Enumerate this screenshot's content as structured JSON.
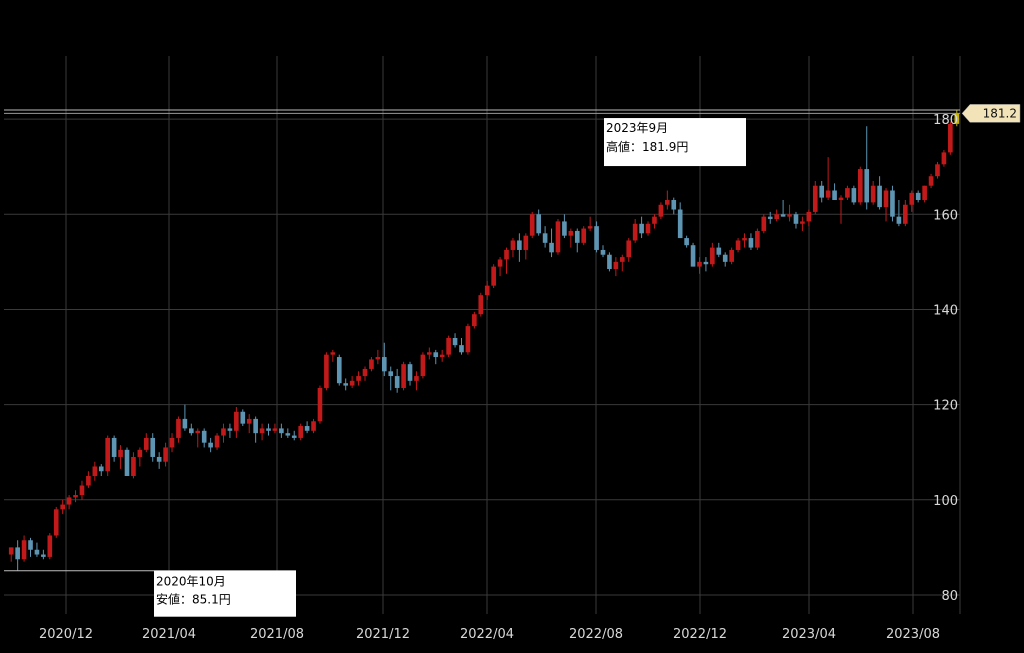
{
  "chart_data": {
    "type": "candlestick",
    "title": "",
    "xlabel": "",
    "ylabel": "",
    "ylim": [
      76,
      192
    ],
    "grid": true,
    "x_ticks": [
      "2020/12",
      "2021/04",
      "2021/08",
      "2021/12",
      "2022/04",
      "2022/08",
      "2022/12",
      "2023/04",
      "2023/08"
    ],
    "y_ticks": [
      "80",
      "100",
      "120",
      "140",
      "160",
      "180"
    ],
    "last_price_label": "181.2",
    "annotations": [
      {
        "line1": "2023年9月",
        "line2": "高値：181.9円",
        "value": 181.9
      },
      {
        "line1": "2020年10月",
        "line2": "安値：85.1円",
        "value": 85.1
      }
    ],
    "colors": {
      "up": "#c21a1a",
      "down": "#5d95b3",
      "grid": "#3a3a3a",
      "last": "#c8b400"
    },
    "candles": [
      [
        88.5,
        90.0,
        87.0,
        90.0
      ],
      [
        90,
        91.5,
        85.1,
        87.5
      ],
      [
        87.5,
        92.5,
        87,
        91.5
      ],
      [
        91.5,
        92,
        88,
        89.5
      ],
      [
        89.5,
        91,
        88,
        88.5
      ],
      [
        88.5,
        89.5,
        87.5,
        88
      ],
      [
        88,
        93,
        87.5,
        92.5
      ],
      [
        92.5,
        98.5,
        92,
        98
      ],
      [
        98,
        100,
        97,
        99
      ],
      [
        99,
        101,
        98,
        100.5
      ],
      [
        100.5,
        102,
        99.5,
        101
      ],
      [
        101,
        104,
        100,
        103
      ],
      [
        103,
        106,
        102.5,
        105
      ],
      [
        105,
        108,
        104,
        107
      ],
      [
        107,
        107.5,
        105,
        106
      ],
      [
        106,
        113.5,
        105,
        113
      ],
      [
        113,
        113.5,
        108,
        109
      ],
      [
        109,
        111.5,
        106.5,
        110.5
      ],
      [
        110.5,
        111,
        105,
        105
      ],
      [
        105,
        110,
        104.5,
        109
      ],
      [
        109,
        111,
        107,
        110.5
      ],
      [
        110.5,
        114,
        110,
        113
      ],
      [
        113,
        114,
        108,
        109
      ],
      [
        109,
        110,
        106.5,
        108
      ],
      [
        108,
        112,
        107,
        111
      ],
      [
        111,
        114,
        110,
        113
      ],
      [
        113,
        117.5,
        112,
        117
      ],
      [
        117,
        120,
        114.5,
        115
      ],
      [
        115,
        116,
        113.5,
        114
      ],
      [
        114,
        115,
        111,
        114.5
      ],
      [
        114.5,
        115,
        111,
        112
      ],
      [
        112,
        113,
        110,
        111
      ],
      [
        111,
        114,
        110.5,
        113.5
      ],
      [
        113.5,
        116,
        112,
        115
      ],
      [
        115,
        116,
        113,
        114.5
      ],
      [
        114.5,
        119.5,
        113,
        118.5
      ],
      [
        118.5,
        119,
        115.5,
        116
      ],
      [
        116,
        118,
        114,
        117
      ],
      [
        117,
        117.5,
        112,
        114
      ],
      [
        114,
        116,
        112.5,
        115
      ],
      [
        115,
        116,
        113.5,
        114.5
      ],
      [
        114.5,
        116,
        114,
        115
      ],
      [
        115,
        116,
        113,
        114
      ],
      [
        114,
        115,
        113,
        113.5
      ],
      [
        113.5,
        114.5,
        112.5,
        113
      ],
      [
        113,
        116,
        112.5,
        115.5
      ],
      [
        115.5,
        116.5,
        114,
        114.5
      ],
      [
        114.5,
        117,
        114,
        116.5
      ],
      [
        116.5,
        124,
        116,
        123.5
      ],
      [
        123.5,
        131,
        123,
        130.5
      ],
      [
        130.5,
        131.5,
        129,
        131
      ],
      [
        130,
        130.5,
        124,
        124.5
      ],
      [
        124.5,
        125.5,
        123,
        124
      ],
      [
        124,
        126,
        123.5,
        125
      ],
      [
        125,
        127,
        124,
        126
      ],
      [
        126,
        128,
        125,
        127.5
      ],
      [
        127.5,
        130,
        127,
        129.5
      ],
      [
        129.5,
        131.5,
        128.5,
        130
      ],
      [
        130,
        133,
        126,
        127
      ],
      [
        127,
        128,
        123,
        126
      ],
      [
        126,
        127.5,
        122.5,
        123.5
      ],
      [
        123.5,
        129,
        123,
        128.5
      ],
      [
        128.5,
        129,
        124,
        125
      ],
      [
        125,
        127,
        123,
        126
      ],
      [
        126,
        131,
        125.5,
        130.5
      ],
      [
        130.5,
        132,
        129.5,
        131
      ],
      [
        131,
        131.5,
        128.5,
        130
      ],
      [
        130,
        131.5,
        129,
        130.5
      ],
      [
        130.5,
        134.5,
        130,
        134
      ],
      [
        134,
        135,
        132,
        132.5
      ],
      [
        132.5,
        134,
        130.5,
        131
      ],
      [
        131,
        137,
        130.5,
        136.5
      ],
      [
        136.5,
        139.5,
        136,
        139
      ],
      [
        139,
        143.5,
        138.5,
        143
      ],
      [
        143,
        146,
        142,
        145
      ],
      [
        145,
        149.5,
        144.5,
        149
      ],
      [
        149,
        151,
        147,
        150.5
      ],
      [
        150.5,
        153,
        147.5,
        152.5
      ],
      [
        152.5,
        155,
        151,
        154.5
      ],
      [
        154.5,
        156,
        150,
        152.5
      ],
      [
        152.5,
        156,
        150.5,
        155.5
      ],
      [
        155.5,
        160.5,
        155,
        160
      ],
      [
        160,
        161,
        155.5,
        156
      ],
      [
        156,
        157.5,
        153,
        154
      ],
      [
        154,
        157,
        151,
        152
      ],
      [
        152,
        159,
        151.5,
        158.5
      ],
      [
        158.5,
        160,
        155,
        155.5
      ],
      [
        155.5,
        157,
        153,
        156.5
      ],
      [
        156.5,
        157,
        152,
        154
      ],
      [
        154,
        157.5,
        153.5,
        157
      ],
      [
        157,
        159.5,
        156.5,
        157.5
      ],
      [
        157.5,
        158.5,
        152,
        152.5
      ],
      [
        152.5,
        153.5,
        151,
        151.5
      ],
      [
        151.5,
        152,
        148,
        148.5
      ],
      [
        148.5,
        151,
        147,
        150
      ],
      [
        150,
        151.5,
        148,
        151
      ],
      [
        151,
        155,
        150,
        154.5
      ],
      [
        154.5,
        159,
        154,
        158
      ],
      [
        158,
        159.5,
        155,
        156
      ],
      [
        156,
        158.5,
        155.5,
        158
      ],
      [
        158,
        160,
        157,
        159.5
      ],
      [
        159.5,
        162.5,
        159,
        162
      ],
      [
        162,
        165,
        161,
        163
      ],
      [
        163,
        163.5,
        160,
        161
      ],
      [
        161,
        162.5,
        155,
        155
      ],
      [
        155,
        155.5,
        153,
        153.5
      ],
      [
        153.5,
        154,
        149,
        149
      ],
      [
        149,
        151,
        147.5,
        150
      ],
      [
        150,
        151,
        148,
        149.5
      ],
      [
        149.5,
        154,
        149,
        153
      ],
      [
        153,
        154,
        151,
        151.5
      ],
      [
        151.5,
        152,
        149,
        150
      ],
      [
        150,
        153,
        149.5,
        152.5
      ],
      [
        152.5,
        155,
        152,
        154.5
      ],
      [
        154.5,
        156,
        153,
        155
      ],
      [
        155,
        156,
        152.5,
        153
      ],
      [
        153,
        157,
        152.5,
        156.5
      ],
      [
        156.5,
        160,
        156,
        159.5
      ],
      [
        159.5,
        160.5,
        158,
        159
      ],
      [
        159,
        161,
        158.5,
        160
      ],
      [
        160,
        163,
        159.5,
        159.5
      ],
      [
        159.5,
        162,
        158.5,
        160
      ],
      [
        160,
        160.5,
        157,
        158
      ],
      [
        158,
        159.5,
        156.5,
        158.5
      ],
      [
        158.5,
        161,
        157.5,
        160.5
      ],
      [
        160.5,
        167,
        160,
        166
      ],
      [
        166,
        167,
        162.5,
        163.5
      ],
      [
        163.5,
        172,
        163,
        165
      ],
      [
        165,
        166.5,
        163,
        163
      ],
      [
        163,
        164,
        158,
        163.5
      ],
      [
        163.5,
        166,
        163,
        165.5
      ],
      [
        165.5,
        166,
        162,
        162.5
      ],
      [
        162.5,
        170,
        162,
        169.5
      ],
      [
        169.5,
        178.5,
        161,
        162.5
      ],
      [
        162.5,
        167,
        162,
        166
      ],
      [
        166,
        168,
        161,
        161.5
      ],
      [
        161.5,
        165.5,
        158.5,
        165
      ],
      [
        165,
        166,
        158.5,
        159.5
      ],
      [
        159.5,
        163,
        157.5,
        158
      ],
      [
        158,
        163,
        157.5,
        162
      ],
      [
        162,
        165,
        160.5,
        164.5
      ],
      [
        164.5,
        165,
        162.5,
        163
      ],
      [
        163,
        166,
        162.5,
        166
      ],
      [
        166,
        168.5,
        165.5,
        168
      ],
      [
        168,
        171,
        167.5,
        170.5
      ],
      [
        170.5,
        173.5,
        170,
        173
      ],
      [
        173,
        179.5,
        172.5,
        179
      ],
      [
        179,
        181.9,
        178.5,
        181.2
      ]
    ]
  }
}
